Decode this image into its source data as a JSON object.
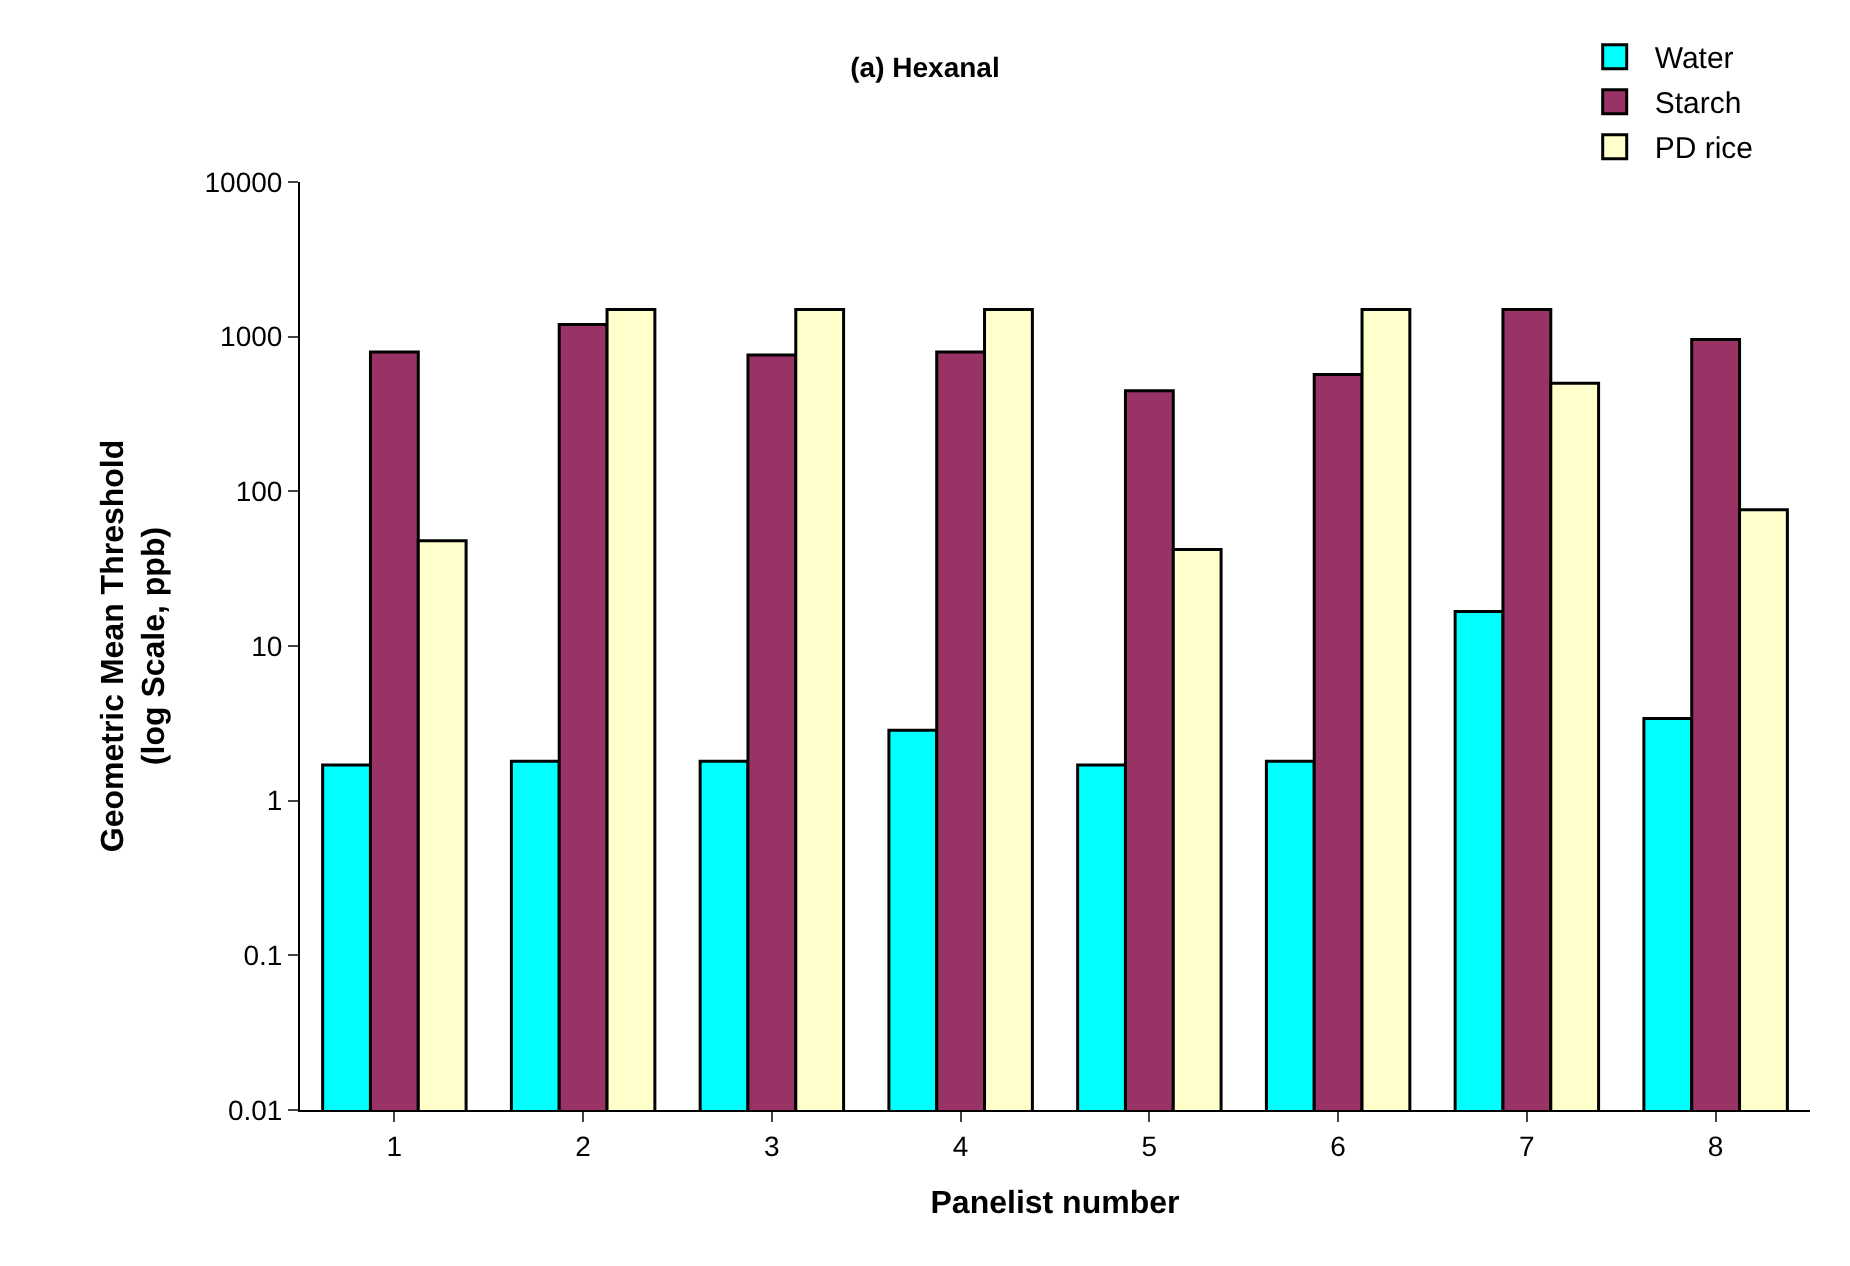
{
  "chart_data": {
    "type": "bar",
    "title": "(a) Hexanal",
    "xlabel": "Panelist number",
    "ylabel": "Geometric Mean Threshold\n(log Scale, ppb)",
    "categories": [
      "1",
      "2",
      "3",
      "4",
      "5",
      "6",
      "7",
      "8"
    ],
    "series": [
      {
        "name": "Water",
        "color": "#00ffff",
        "values": [
          1.7,
          1.8,
          1.8,
          2.85,
          1.7,
          1.8,
          16.7,
          3.4
        ]
      },
      {
        "name": "Starch",
        "color": "#993366",
        "values": [
          795,
          1200,
          760,
          795,
          447,
          570,
          1500,
          960
        ]
      },
      {
        "name": "PD rice",
        "color": "#ffffcc",
        "values": [
          48,
          1500,
          1500,
          1500,
          42,
          1500,
          500,
          76
        ]
      }
    ],
    "log": "y",
    "ylim": [
      0.01,
      10000
    ],
    "yticks": [
      0.01,
      0.1,
      1,
      10,
      100,
      1000,
      10000
    ],
    "legend": "top right"
  }
}
